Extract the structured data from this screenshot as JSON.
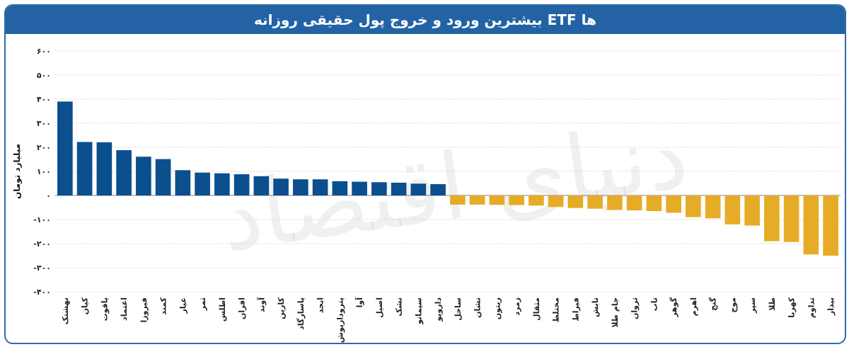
{
  "header": {
    "title": "بیشترین ورود و خروج پول حقیقی روزانه ETF ها"
  },
  "watermark": {
    "text": "دنیای اقتصاد"
  },
  "chart_data": {
    "type": "bar",
    "title": "بیشترین ورود و خروج پول حقیقی روزانه ETF ها",
    "ylabel": "میلیارد تومان",
    "xlabel": "",
    "ylim": [
      -400,
      600
    ],
    "yticks": [
      600,
      500,
      400,
      300,
      200,
      100,
      0,
      -100,
      -200,
      -300,
      -400
    ],
    "ytick_labels": [
      "۶۰۰",
      "۵۰۰",
      "۴۰۰",
      "۳۰۰",
      "۲۰۰",
      "۱۰۰",
      "۰",
      "-۱۰۰",
      "-۲۰۰",
      "-۳۰۰",
      "-۴۰۰"
    ],
    "grid": true,
    "categories": [
      "نهشتک",
      "کیان",
      "یاقوت",
      "اعتماد",
      "فیروزا",
      "کمند",
      "عیار",
      "ثمر",
      "اطلس",
      "افران",
      "آوند",
      "کارین",
      "پاسارگاد",
      "ابجد",
      "پتروداریوش",
      "آوا",
      "اصیل",
      "نشک",
      "سیمانو",
      "داروپو",
      "ساحل",
      "نشان",
      "ریتون",
      "زمرد",
      "مثقال",
      "مختلط",
      "فیراط",
      "تابش",
      "جام طلا",
      "ثروان",
      "تاب",
      "گوهر",
      "اهرم",
      "گنج",
      "موج",
      "سپر",
      "طلا",
      "کهربا",
      "تداوم",
      "بیدار"
    ],
    "values": [
      390,
      222,
      221,
      188,
      161,
      151,
      105,
      95,
      92,
      88,
      80,
      70,
      67,
      67,
      59,
      57,
      55,
      53,
      49,
      47,
      -38,
      -38,
      -39,
      -40,
      -42,
      -48,
      -52,
      -55,
      -60,
      -62,
      -65,
      -72,
      -90,
      -95,
      -120,
      -125,
      -190,
      -193,
      -245,
      -250
    ],
    "colors": {
      "positive": "#0b4f8f",
      "negative": "#e6ac27"
    }
  }
}
